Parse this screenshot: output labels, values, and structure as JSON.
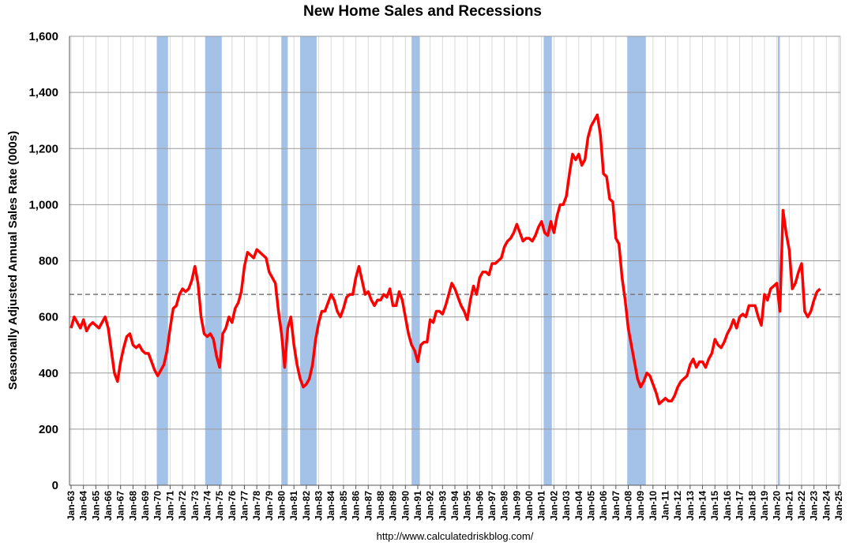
{
  "chart_data": {
    "type": "line",
    "title": "New Home Sales and Recessions",
    "y_label": "Seasonally Adjusted Annual Sales Rate (000s)",
    "source": "http://www.calculatedriskblog.com/",
    "xlim": [
      1963,
      2025
    ],
    "ylim": [
      0,
      1600
    ],
    "yticks": [
      {
        "value": 0,
        "label": "0"
      },
      {
        "value": 200,
        "label": "200"
      },
      {
        "value": 400,
        "label": "400"
      },
      {
        "value": 600,
        "label": "600"
      },
      {
        "value": 800,
        "label": "800"
      },
      {
        "value": 1000,
        "label": "1,000"
      },
      {
        "value": 1200,
        "label": "1,200"
      },
      {
        "value": 1400,
        "label": "1,400"
      },
      {
        "value": 1600,
        "label": "1,600"
      }
    ],
    "xticks": [
      {
        "value": 1963,
        "label": "Jan-63"
      },
      {
        "value": 1964,
        "label": "Jan-64"
      },
      {
        "value": 1965,
        "label": "Jan-65"
      },
      {
        "value": 1966,
        "label": "Jan-66"
      },
      {
        "value": 1967,
        "label": "Jan-67"
      },
      {
        "value": 1968,
        "label": "Jan-68"
      },
      {
        "value": 1969,
        "label": "Jan-69"
      },
      {
        "value": 1970,
        "label": "Jan-70"
      },
      {
        "value": 1971,
        "label": "Jan-71"
      },
      {
        "value": 1972,
        "label": "Jan-72"
      },
      {
        "value": 1973,
        "label": "Jan-73"
      },
      {
        "value": 1974,
        "label": "Jan-74"
      },
      {
        "value": 1975,
        "label": "Jan-75"
      },
      {
        "value": 1976,
        "label": "Jan-76"
      },
      {
        "value": 1977,
        "label": "Jan-77"
      },
      {
        "value": 1978,
        "label": "Jan-78"
      },
      {
        "value": 1979,
        "label": "Jan-79"
      },
      {
        "value": 1980,
        "label": "Jan-80"
      },
      {
        "value": 1981,
        "label": "Jan-81"
      },
      {
        "value": 1982,
        "label": "Jan-82"
      },
      {
        "value": 1983,
        "label": "Jan-83"
      },
      {
        "value": 1984,
        "label": "Jan-84"
      },
      {
        "value": 1985,
        "label": "Jan-85"
      },
      {
        "value": 1986,
        "label": "Jan-86"
      },
      {
        "value": 1987,
        "label": "Jan-87"
      },
      {
        "value": 1988,
        "label": "Jan-88"
      },
      {
        "value": 1989,
        "label": "Jan-89"
      },
      {
        "value": 1990,
        "label": "Jan-90"
      },
      {
        "value": 1991,
        "label": "Jan-91"
      },
      {
        "value": 1992,
        "label": "Jan-92"
      },
      {
        "value": 1993,
        "label": "Jan-93"
      },
      {
        "value": 1994,
        "label": "Jan-94"
      },
      {
        "value": 1995,
        "label": "Jan-95"
      },
      {
        "value": 1996,
        "label": "Jan-96"
      },
      {
        "value": 1997,
        "label": "Jan-97"
      },
      {
        "value": 1998,
        "label": "Jan-98"
      },
      {
        "value": 1999,
        "label": "Jan-99"
      },
      {
        "value": 2000,
        "label": "Jan-00"
      },
      {
        "value": 2001,
        "label": "Jan-01"
      },
      {
        "value": 2002,
        "label": "Jan-02"
      },
      {
        "value": 2003,
        "label": "Jan-03"
      },
      {
        "value": 2004,
        "label": "Jan-04"
      },
      {
        "value": 2005,
        "label": "Jan-05"
      },
      {
        "value": 2006,
        "label": "Jan-06"
      },
      {
        "value": 2007,
        "label": "Jan-07"
      },
      {
        "value": 2008,
        "label": "Jan-08"
      },
      {
        "value": 2009,
        "label": "Jan-09"
      },
      {
        "value": 2010,
        "label": "Jan-10"
      },
      {
        "value": 2011,
        "label": "Jan-11"
      },
      {
        "value": 2012,
        "label": "Jan-12"
      },
      {
        "value": 2013,
        "label": "Jan-13"
      },
      {
        "value": 2014,
        "label": "Jan-14"
      },
      {
        "value": 2015,
        "label": "Jan-15"
      },
      {
        "value": 2016,
        "label": "Jan-16"
      },
      {
        "value": 2017,
        "label": "Jan-17"
      },
      {
        "value": 2018,
        "label": "Jan-18"
      },
      {
        "value": 2019,
        "label": "Jan-19"
      },
      {
        "value": 2020,
        "label": "Jan-20"
      },
      {
        "value": 2021,
        "label": "Jan-21"
      },
      {
        "value": 2022,
        "label": "Jan-22"
      },
      {
        "value": 2023,
        "label": "Jan-23"
      },
      {
        "value": 2024,
        "label": "Jan-24"
      },
      {
        "value": 2025,
        "label": "Jan-25"
      }
    ],
    "grid": true,
    "reference_line": 680,
    "recession_color": "#a4c2e8",
    "recessions": [
      {
        "start": 1969.92,
        "end": 1970.83
      },
      {
        "start": 1973.83,
        "end": 1975.17
      },
      {
        "start": 1980.0,
        "end": 1980.5
      },
      {
        "start": 1981.5,
        "end": 1982.83
      },
      {
        "start": 1990.5,
        "end": 1991.17
      },
      {
        "start": 2001.17,
        "end": 2001.83
      },
      {
        "start": 2007.92,
        "end": 2009.42
      },
      {
        "start": 2020.08,
        "end": 2020.25
      }
    ],
    "series": [
      {
        "color": "#ff0000",
        "x": [
          1963,
          1963.25,
          1963.5,
          1963.75,
          1964,
          1964.25,
          1964.5,
          1964.75,
          1965,
          1965.25,
          1965.5,
          1965.75,
          1966,
          1966.25,
          1966.5,
          1966.75,
          1967,
          1967.25,
          1967.5,
          1967.75,
          1968,
          1968.25,
          1968.5,
          1968.75,
          1969,
          1969.25,
          1969.5,
          1969.75,
          1970,
          1970.25,
          1970.5,
          1970.75,
          1971,
          1971.25,
          1971.5,
          1971.75,
          1972,
          1972.25,
          1972.5,
          1972.75,
          1973,
          1973.25,
          1973.5,
          1973.75,
          1974,
          1974.25,
          1974.5,
          1974.75,
          1975,
          1975.25,
          1975.5,
          1975.75,
          1976,
          1976.25,
          1976.5,
          1976.75,
          1977,
          1977.25,
          1977.5,
          1977.75,
          1978,
          1978.25,
          1978.5,
          1978.75,
          1979,
          1979.25,
          1979.5,
          1979.75,
          1980,
          1980.25,
          1980.5,
          1980.75,
          1981,
          1981.25,
          1981.5,
          1981.75,
          1982,
          1982.25,
          1982.5,
          1982.75,
          1983,
          1983.25,
          1983.5,
          1983.75,
          1984,
          1984.25,
          1984.5,
          1984.75,
          1985,
          1985.25,
          1985.5,
          1985.75,
          1986,
          1986.25,
          1986.5,
          1986.75,
          1987,
          1987.25,
          1987.5,
          1987.75,
          1988,
          1988.25,
          1988.5,
          1988.75,
          1989,
          1989.25,
          1989.5,
          1989.75,
          1990,
          1990.25,
          1990.5,
          1990.75,
          1991,
          1991.25,
          1991.5,
          1991.75,
          1992,
          1992.25,
          1992.5,
          1992.75,
          1993,
          1993.25,
          1993.5,
          1993.75,
          1994,
          1994.25,
          1994.5,
          1994.75,
          1995,
          1995.25,
          1995.5,
          1995.75,
          1996,
          1996.25,
          1996.5,
          1996.75,
          1997,
          1997.25,
          1997.5,
          1997.75,
          1998,
          1998.25,
          1998.5,
          1998.75,
          1999,
          1999.25,
          1999.5,
          1999.75,
          2000,
          2000.25,
          2000.5,
          2000.75,
          2001,
          2001.25,
          2001.5,
          2001.75,
          2002,
          2002.25,
          2002.5,
          2002.75,
          2003,
          2003.25,
          2003.5,
          2003.75,
          2004,
          2004.25,
          2004.5,
          2004.75,
          2005,
          2005.25,
          2005.5,
          2005.75,
          2006,
          2006.25,
          2006.5,
          2006.75,
          2007,
          2007.25,
          2007.5,
          2007.75,
          2008,
          2008.25,
          2008.5,
          2008.75,
          2009,
          2009.25,
          2009.5,
          2009.75,
          2010,
          2010.25,
          2010.5,
          2010.75,
          2011,
          2011.25,
          2011.5,
          2011.75,
          2012,
          2012.25,
          2012.5,
          2012.75,
          2013,
          2013.25,
          2013.5,
          2013.75,
          2014,
          2014.25,
          2014.5,
          2014.75,
          2015,
          2015.25,
          2015.5,
          2015.75,
          2016,
          2016.25,
          2016.5,
          2016.75,
          2017,
          2017.25,
          2017.5,
          2017.75,
          2018,
          2018.25,
          2018.5,
          2018.75,
          2019,
          2019.25,
          2019.5,
          2019.75,
          2020,
          2020.25,
          2020.5,
          2020.75,
          2021,
          2021.25,
          2021.5,
          2021.75,
          2022,
          2022.25,
          2022.5,
          2022.75,
          2023,
          2023.25,
          2023.5
        ],
        "values": [
          560,
          600,
          580,
          560,
          590,
          550,
          570,
          580,
          570,
          560,
          580,
          600,
          560,
          480,
          400,
          370,
          440,
          490,
          530,
          540,
          500,
          490,
          500,
          480,
          470,
          470,
          440,
          410,
          390,
          410,
          430,
          480,
          560,
          630,
          640,
          680,
          700,
          690,
          700,
          730,
          780,
          720,
          600,
          540,
          530,
          540,
          520,
          460,
          420,
          540,
          560,
          600,
          580,
          630,
          650,
          690,
          780,
          830,
          820,
          810,
          840,
          830,
          820,
          810,
          760,
          740,
          720,
          620,
          540,
          420,
          560,
          600,
          500,
          430,
          380,
          350,
          360,
          380,
          430,
          520,
          580,
          620,
          620,
          650,
          680,
          660,
          620,
          600,
          630,
          670,
          680,
          680,
          740,
          780,
          730,
          680,
          690,
          660,
          640,
          660,
          660,
          680,
          670,
          700,
          640,
          640,
          690,
          660,
          600,
          540,
          500,
          480,
          440,
          500,
          510,
          510,
          590,
          580,
          620,
          620,
          610,
          640,
          680,
          720,
          700,
          670,
          640,
          620,
          590,
          660,
          710,
          680,
          740,
          760,
          760,
          750,
          790,
          790,
          800,
          810,
          850,
          870,
          880,
          900,
          930,
          900,
          870,
          880,
          880,
          870,
          890,
          920,
          940,
          900,
          890,
          940,
          900,
          960,
          1000,
          1000,
          1030,
          1110,
          1180,
          1160,
          1180,
          1140,
          1160,
          1240,
          1280,
          1300,
          1320,
          1250,
          1110,
          1100,
          1020,
          1010,
          880,
          860,
          740,
          660,
          560,
          500,
          440,
          380,
          350,
          370,
          400,
          390,
          360,
          330,
          290,
          300,
          310,
          300,
          300,
          320,
          350,
          370,
          380,
          390,
          430,
          450,
          420,
          440,
          440,
          420,
          450,
          470,
          520,
          500,
          490,
          510,
          540,
          560,
          590,
          560,
          600,
          610,
          600,
          640,
          640,
          640,
          600,
          570,
          680,
          660,
          700,
          710,
          720,
          620,
          980,
          900,
          840,
          700,
          720,
          760,
          790,
          620,
          600,
          620,
          660,
          690,
          700
        ]
      }
    ]
  }
}
